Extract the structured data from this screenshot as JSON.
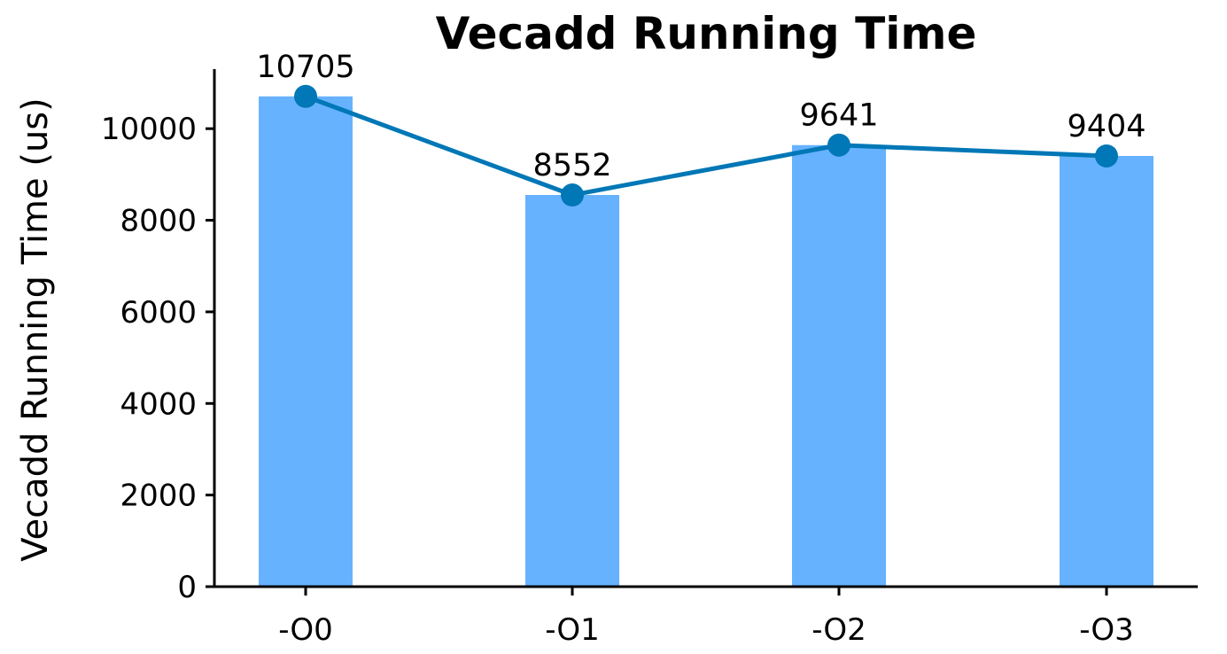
{
  "chart_data": {
    "type": "bar",
    "title": "Vecadd Running Time",
    "xlabel": "",
    "ylabel": "Vecadd Running Time (us)",
    "categories": [
      "-O0",
      "-O1",
      "-O2",
      "-O3"
    ],
    "values": [
      10705,
      8552,
      9641,
      9404
    ],
    "overlay_line": true,
    "ylim": [
      0,
      11300
    ],
    "yticks": [
      0,
      2000,
      4000,
      6000,
      8000,
      10000
    ],
    "grid": false,
    "legend": "none",
    "colors": {
      "bar": "#66b2ff",
      "line": "#0077b6",
      "axis": "#000000"
    }
  }
}
